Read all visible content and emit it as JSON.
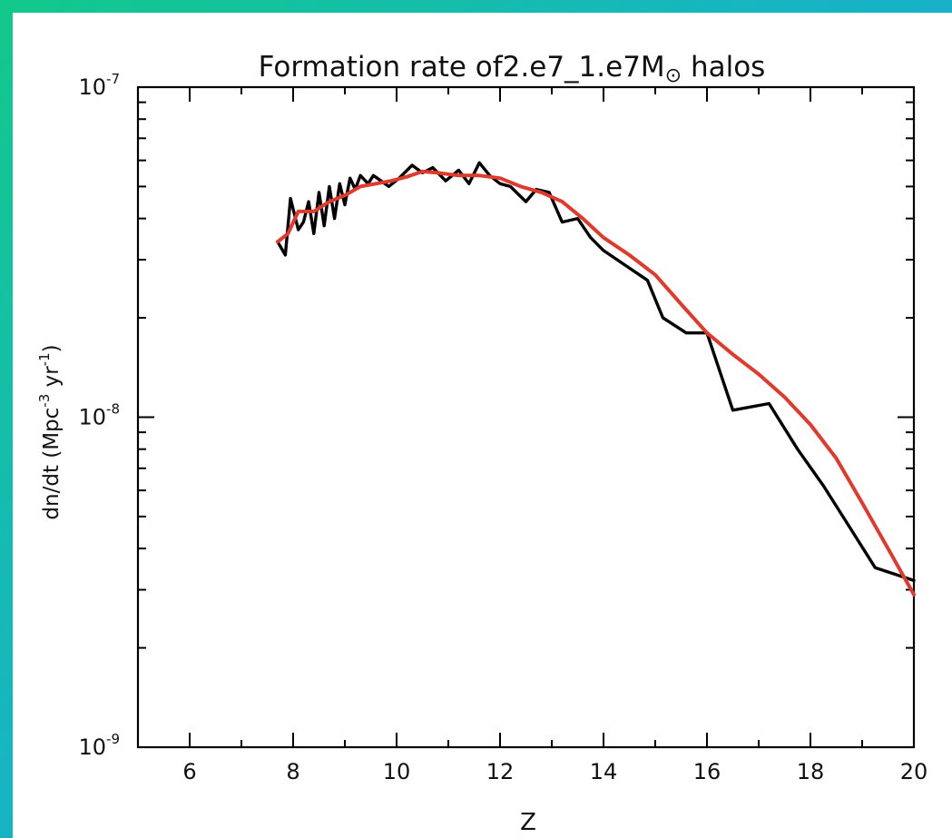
{
  "chart_data": {
    "type": "line",
    "title": {
      "prefix": "Formation rate of2.e7_1.e7M",
      "symbol": "⊙",
      "suffix": " halos"
    },
    "xlabel": "Z",
    "ylabel": {
      "main": "dn/dt  (Mpc",
      "exp1": "-3",
      "mid": " yr",
      "exp2": "-1",
      "end": ")"
    },
    "xlim": [
      5,
      20
    ],
    "ylim": [
      1e-09,
      1e-07
    ],
    "yscale": "log",
    "x_ticks": [
      6,
      8,
      10,
      12,
      14,
      16,
      18,
      20
    ],
    "y_ticks": [
      {
        "value": 1e-09,
        "base": "10",
        "exp": "-9"
      },
      {
        "value": 1e-08,
        "base": "10",
        "exp": "-8"
      },
      {
        "value": 1e-07,
        "base": "10",
        "exp": "-7"
      }
    ],
    "grid": false,
    "series": [
      {
        "color": "#000000",
        "x": [
          7.7,
          7.85,
          7.95,
          8.1,
          8.2,
          8.3,
          8.4,
          8.5,
          8.6,
          8.7,
          8.8,
          8.9,
          9.0,
          9.1,
          9.2,
          9.3,
          9.45,
          9.55,
          9.7,
          9.85,
          10.05,
          10.3,
          10.5,
          10.7,
          10.95,
          11.2,
          11.4,
          11.6,
          11.8,
          12.0,
          12.2,
          12.5,
          12.7,
          12.95,
          13.2,
          13.5,
          13.75,
          14.0,
          14.4,
          14.85,
          15.15,
          15.6,
          16.0,
          16.5,
          17.2,
          17.75,
          18.25,
          18.7,
          19.25,
          20.0
        ],
        "values": [
          3.4e-08,
          3.1e-08,
          4.6e-08,
          3.7e-08,
          3.9e-08,
          4.5e-08,
          3.6e-08,
          4.8e-08,
          3.8e-08,
          5e-08,
          4e-08,
          5.1e-08,
          4.4e-08,
          5.3e-08,
          4.9e-08,
          5.4e-08,
          5.1e-08,
          5.4e-08,
          5.2e-08,
          5e-08,
          5.3e-08,
          5.8e-08,
          5.5e-08,
          5.7e-08,
          5.2e-08,
          5.6e-08,
          5.1e-08,
          5.9e-08,
          5.4e-08,
          5.1e-08,
          5e-08,
          4.5e-08,
          4.9e-08,
          4.8e-08,
          3.9e-08,
          4e-08,
          3.5e-08,
          3.2e-08,
          2.9e-08,
          2.6e-08,
          2e-08,
          1.8e-08,
          1.8e-08,
          1.05e-08,
          1.1e-08,
          8e-09,
          6.2e-09,
          4.8e-09,
          3.5e-09,
          3.2e-09
        ]
      },
      {
        "color": "#e03a2c",
        "x": [
          7.7,
          7.9,
          8.1,
          8.4,
          8.7,
          9.0,
          9.3,
          9.6,
          9.9,
          10.2,
          10.5,
          10.8,
          11.2,
          11.6,
          12.0,
          12.4,
          12.8,
          13.2,
          13.6,
          14.0,
          14.5,
          15.0,
          15.5,
          16.0,
          16.5,
          17.0,
          17.5,
          18.0,
          18.5,
          19.0,
          19.5,
          20.0
        ],
        "values": [
          3.4e-08,
          3.6e-08,
          4.2e-08,
          4.2e-08,
          4.5e-08,
          4.7e-08,
          5e-08,
          5.1e-08,
          5.2e-08,
          5.35e-08,
          5.55e-08,
          5.5e-08,
          5.4e-08,
          5.4e-08,
          5.3e-08,
          5e-08,
          4.8e-08,
          4.5e-08,
          4e-08,
          3.5e-08,
          3.1e-08,
          2.7e-08,
          2.2e-08,
          1.8e-08,
          1.55e-08,
          1.35e-08,
          1.15e-08,
          9.5e-09,
          7.5e-09,
          5.5e-09,
          4e-09,
          2.9e-09
        ]
      }
    ]
  }
}
